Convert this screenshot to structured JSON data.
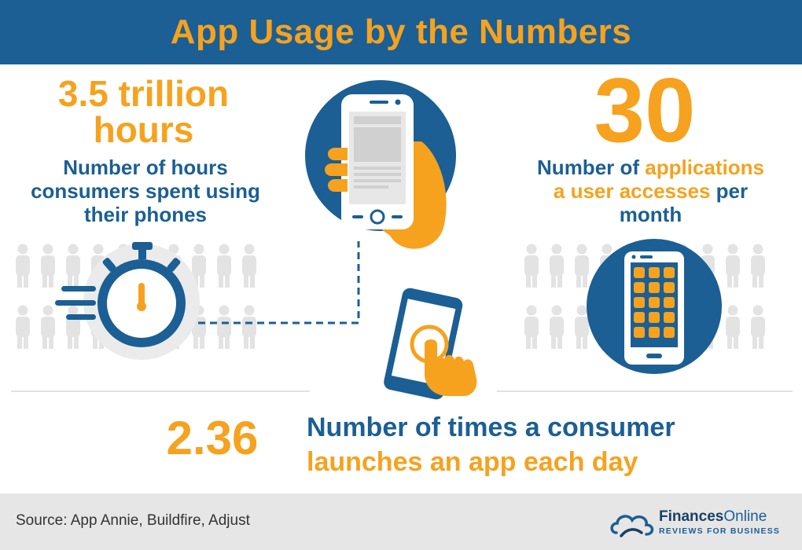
{
  "header": {
    "title": "App Usage by the Numbers"
  },
  "stat_hours": {
    "value_line1": "3.5 trillion",
    "value_line2": "hours",
    "desc_line1": "Number of hours",
    "desc_line2": "consumers spent using",
    "desc_line3": "their phones"
  },
  "stat_apps": {
    "value": "30",
    "desc_part1": "Number of ",
    "desc_part2": "applications",
    "desc_part3": "a user accesses",
    "desc_part4": " per",
    "desc_part5": "month"
  },
  "stat_launches": {
    "value": "2.36",
    "desc_line1": "Number of times a consumer",
    "desc_line2": "launches an app each day"
  },
  "footer": {
    "source": "Source: App Annie, Buildfire, Adjust",
    "brand_bold": "Finances",
    "brand_light": "Online",
    "brand_tagline": "REVIEWS FOR BUSINESS"
  },
  "colors": {
    "blue": "#1b5f94",
    "orange": "#f6a21e",
    "gray": "#e2e2e2"
  },
  "icons": [
    "stopwatch-icon",
    "phone-in-hand-icon",
    "app-grid-phone-icon",
    "tap-phone-icon",
    "people-crowd-icon",
    "finances-online-logo"
  ]
}
